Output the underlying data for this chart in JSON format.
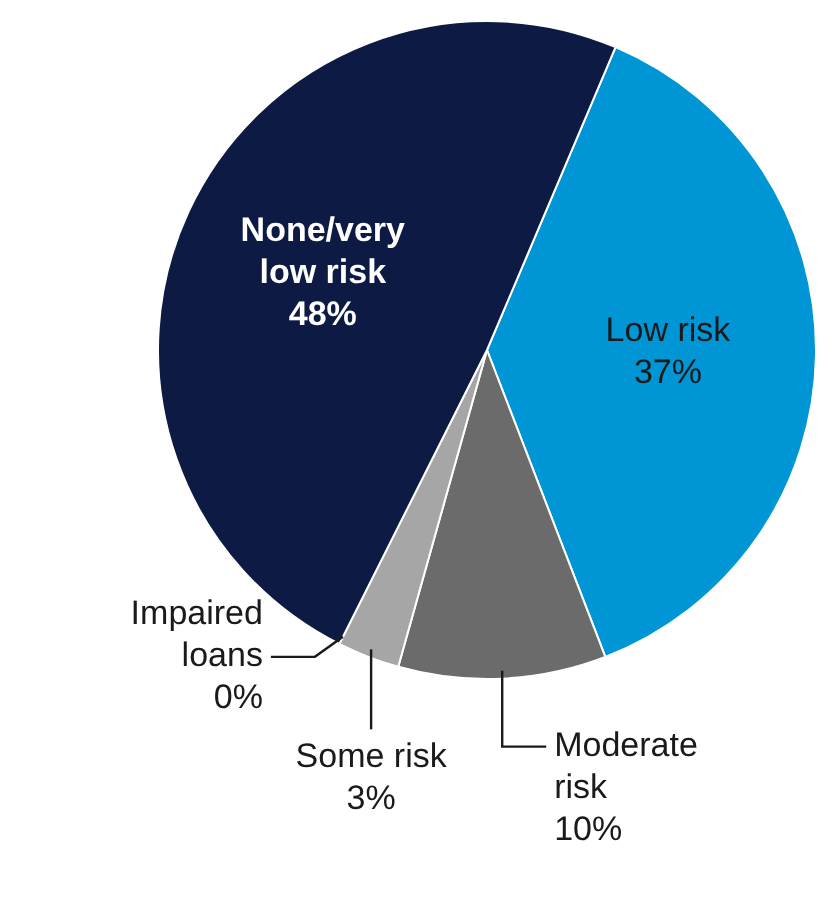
{
  "chart_data": {
    "type": "pie",
    "categories": [
      "Low risk",
      "Moderate risk",
      "Some risk",
      "Impaired loans",
      "None/very low risk"
    ],
    "values": [
      37,
      10,
      3,
      0,
      48
    ],
    "colors": [
      "#0096d6",
      "#6b6b6b",
      "#a6a6a6",
      "#d9d9d9",
      "#0c1a44"
    ],
    "value_labels": [
      "37%",
      "10%",
      "3%",
      "0%",
      "48%"
    ]
  }
}
